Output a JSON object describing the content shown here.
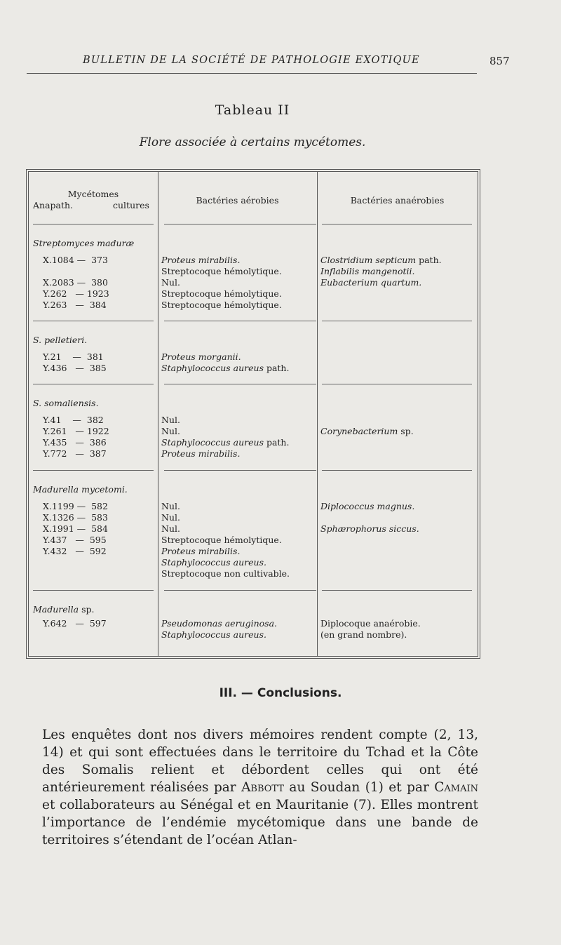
{
  "header": {
    "running_title": "BULLETIN DE LA SOCIÉTÉ DE PATHOLOGIE EXOTIQUE",
    "page_number": "857"
  },
  "table": {
    "title": "Tableau II",
    "subtitle": "Flore associée à certains mycétomes.",
    "columns": {
      "col1_line1": "Mycétomes",
      "col1_anapath": "Anapath.",
      "col1_cultures": "cultures",
      "col2": "Bactéries aérobies",
      "col3": "Bactéries anaérobies"
    },
    "groups": [
      {
        "name": "Streptomyces maduræ",
        "rows": [
          {
            "specimen": "X.1084 —  373",
            "aerobic": [
              {
                "i": "Proteus mirabilis."
              }
            ],
            "anaerobic": [
              {
                "i": "Clostridium septicum",
                "r": " path."
              }
            ]
          },
          {
            "specimen": "",
            "aerobic": [
              {
                "r": "Streptocoque hémolytique."
              }
            ],
            "anaerobic": [
              {
                "i": "Inflabilis mangenotii."
              }
            ]
          },
          {
            "specimen": "X.2083 —  380",
            "aerobic": [
              {
                "r": "Nul."
              }
            ],
            "anaerobic": [
              {
                "i": "Eubacterium quartum."
              }
            ]
          },
          {
            "specimen": "Y.262   — 1923",
            "aerobic": [
              {
                "r": "Streptocoque hémolytique."
              }
            ],
            "anaerobic": []
          },
          {
            "specimen": "Y.263   —  384",
            "aerobic": [
              {
                "r": "Streptocoque hémolytique."
              }
            ],
            "anaerobic": []
          }
        ]
      },
      {
        "name": "S. pelletieri.",
        "rows": [
          {
            "specimen": "Y.21    —  381",
            "aerobic": [
              {
                "i": "Proteus morganii."
              }
            ],
            "anaerobic": []
          },
          {
            "specimen": "Y.436   —  385",
            "aerobic": [
              {
                "i": "Staphylococcus aureus",
                "r": " path."
              }
            ],
            "anaerobic": []
          }
        ]
      },
      {
        "name": "S. somaliensis.",
        "rows": [
          {
            "specimen": "Y.41    —  382",
            "aerobic": [
              {
                "r": "Nul."
              }
            ],
            "anaerobic": []
          },
          {
            "specimen": "Y.261   — 1922",
            "aerobic": [
              {
                "r": "Nul."
              }
            ],
            "anaerobic": [
              {
                "i": "Corynebacterium",
                "r": " sp."
              }
            ]
          },
          {
            "specimen": "Y.435   —  386",
            "aerobic": [
              {
                "i": "Staphylococcus aureus",
                "r": " path."
              }
            ],
            "anaerobic": []
          },
          {
            "specimen": "Y.772   —  387",
            "aerobic": [
              {
                "i": "Proteus mirabilis."
              }
            ],
            "anaerobic": []
          }
        ]
      },
      {
        "name": "Madurella mycetomi.",
        "rows": [
          {
            "specimen": "X.1199 —  582",
            "aerobic": [
              {
                "r": "Nul."
              }
            ],
            "anaerobic": [
              {
                "i": "Diplococcus magnus."
              }
            ]
          },
          {
            "specimen": "X.1326 —  583",
            "aerobic": [
              {
                "r": "Nul."
              }
            ],
            "anaerobic": []
          },
          {
            "specimen": "X.1991 —  584",
            "aerobic": [
              {
                "r": "Nul."
              }
            ],
            "anaerobic": [
              {
                "i": "Sphærophorus siccus."
              }
            ]
          },
          {
            "specimen": "Y.437   —  595",
            "aerobic": [
              {
                "r": "Streptocoque hémolytique."
              }
            ],
            "anaerobic": []
          },
          {
            "specimen": "Y.432   —  592",
            "aerobic": [
              {
                "i": "Proteus mirabilis."
              }
            ],
            "anaerobic": []
          },
          {
            "specimen": "",
            "aerobic": [
              {
                "i": "Staphylococcus aureus."
              }
            ],
            "anaerobic": []
          },
          {
            "specimen": "",
            "aerobic": [
              {
                "r": "Streptocoque non cultivable."
              }
            ],
            "anaerobic": []
          }
        ]
      },
      {
        "name": "Madurella",
        "name_suffix": " sp.",
        "rows": [
          {
            "specimen": "Y.642   —  597",
            "aerobic": [
              {
                "i": "Pseudomonas aeruginosa."
              }
            ],
            "anaerobic": [
              {
                "r": "Diplocoque anaérobie."
              }
            ]
          },
          {
            "specimen": "",
            "aerobic": [
              {
                "i": "Staphylococcus aureus."
              }
            ],
            "anaerobic": [
              {
                "r": "(en grand nombre)."
              }
            ]
          }
        ]
      }
    ]
  },
  "section": {
    "heading": "III. — Conclusions.",
    "paragraph": [
      {
        "t": "Les enquêtes dont nos divers mémoires rendent compte (2, 13, 14) et qui sont effectuées dans le territoire du Tchad et la Côte des Somalis relient et débordent celles qui ont été antérieurement réalisées par "
      },
      {
        "sc": "Abbott"
      },
      {
        "t": " au Soudan (1) et par "
      },
      {
        "sc": "Camain"
      },
      {
        "t": " et collaborateurs au Sénégal et en Mauritanie (7). Elles montrent l’importance de l’endémie mycétomique dans une bande de territoires s’étendant de l’océan Atlan-"
      }
    ]
  }
}
